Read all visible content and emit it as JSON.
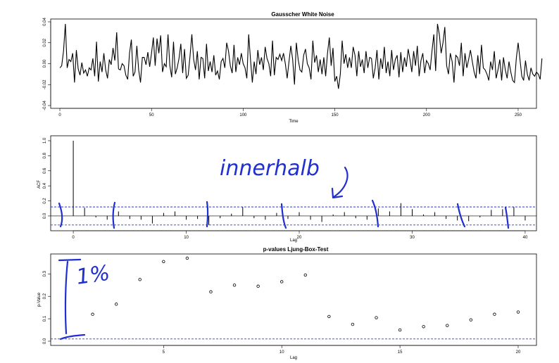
{
  "chart_data": [
    {
      "type": "line",
      "title": "Gausscher White Noise",
      "xlabel": "Time",
      "ylabel": "",
      "xlim": [
        -5,
        260
      ],
      "ylim": [
        -0.04,
        0.04
      ],
      "x_ticks": [
        0,
        50,
        100,
        150,
        200,
        250
      ],
      "y_ticks": [
        -0.04,
        -0.02,
        0.0,
        0.02,
        0.04
      ],
      "y_tick_labels": [
        "-0.04",
        "-0.02",
        "0.00",
        "0.02",
        "0.04"
      ],
      "series": [
        {
          "x_start": 0,
          "x_step": 1,
          "color": "#000000",
          "values": [
            -0.004,
            -0.002,
            0.012,
            0.038,
            -0.004,
            0.004,
            0.002,
            0.01,
            -0.018,
            0.013,
            -0.005,
            -0.011,
            0.001,
            -0.009,
            -0.006,
            -0.012,
            -0.004,
            -0.006,
            0.005,
            -0.012,
            0.021,
            -0.017,
            0.002,
            -0.008,
            0.01,
            -0.006,
            -0.014,
            0.004,
            -0.001,
            0.015,
            0.003,
            0.03,
            -0.005,
            -0.006,
            0.0,
            -0.002,
            -0.011,
            -0.015,
            0.01,
            0.023,
            -0.012,
            -0.008,
            0.017,
            -0.006,
            -0.018,
            0.006,
            0.006,
            -0.001,
            0.011,
            -0.003,
            0.01,
            0.025,
            -0.002,
            0.024,
            0.01,
            0.027,
            -0.008,
            0.0,
            -0.003,
            0.028,
            -0.002,
            -0.013,
            0.021,
            -0.01,
            -0.004,
            0.005,
            0.019,
            -0.009,
            0.014,
            -0.014,
            -0.011,
            0.007,
            0.028,
            0.004,
            -0.006,
            0.012,
            -0.015,
            0.006,
            0.005,
            -0.014,
            0.019,
            -0.007,
            0.002,
            -0.008,
            0.008,
            -0.011,
            -0.007,
            -0.015,
            0.002,
            0.005,
            -0.004,
            0.02,
            0.012,
            -0.002,
            -0.009,
            0.018,
            -0.008,
            0.006,
            -0.001,
            0.01,
            0.0,
            -0.004,
            -0.014,
            0.028,
            0.004,
            -0.018,
            0.002,
            -0.01,
            0.013,
            -0.001,
            0.006,
            -0.006,
            0.016,
            0.005,
            0.0,
            -0.012,
            0.022,
            -0.011,
            0.006,
            0.004,
            0.009,
            0.003,
            0.01,
            0.0,
            -0.014,
            0.002,
            0.017,
            0.004,
            -0.02,
            0.02,
            0.004,
            -0.006,
            -0.008,
            0.008,
            0.014,
            0.0,
            -0.004,
            -0.015,
            0.022,
            0.001,
            0.008,
            -0.008,
            0.004,
            -0.01,
            0.006,
            -0.012,
            0.01,
            0.025,
            -0.002,
            0.015,
            -0.017,
            -0.012,
            -0.024,
            -0.01,
            0.022,
            0.0,
            0.009,
            -0.004,
            0.006,
            -0.004,
            0.016,
            0.008,
            -0.012,
            0.012,
            -0.003,
            0.004,
            -0.009,
            0.012,
            -0.004,
            0.006,
            0.005,
            -0.014,
            -0.004,
            0.013,
            -0.015,
            0.005,
            -0.005,
            0.016,
            -0.009,
            0.002,
            -0.012,
            0.013,
            -0.006,
            0.004,
            0.008,
            -0.013,
            0.011,
            -0.008,
            0.006,
            -0.003,
            0.014,
            0.004,
            -0.008,
            0.012,
            -0.002,
            0.017,
            -0.012,
            0.003,
            0.01,
            -0.009,
            0.003,
            0.0,
            -0.006,
            0.012,
            0.028,
            -0.007,
            0.038,
            0.028,
            0.01,
            0.02,
            0.035,
            -0.002,
            -0.01,
            0.01,
            0.002,
            -0.018,
            0.008,
            0.006,
            -0.002,
            0.02,
            -0.012,
            0.01,
            -0.004,
            0.004,
            0.013,
            0.002,
            -0.008,
            -0.014,
            0.008,
            -0.01,
            0.018,
            -0.004,
            -0.006,
            -0.01,
            -0.016,
            0.002,
            -0.006,
            0.012,
            -0.014,
            -0.006,
            0.004,
            -0.016,
            0.006,
            -0.006,
            -0.014,
            0.002,
            -0.008,
            -0.016,
            -0.018,
            0.005,
            0.02,
            0.004,
            -0.012,
            -0.016,
            0.003,
            -0.01,
            -0.016,
            -0.004,
            -0.01,
            -0.012,
            -0.008,
            -0.01,
            -0.015,
            0.005
          ]
        }
      ]
    },
    {
      "type": "bar",
      "title": "",
      "xlabel": "Lag",
      "ylabel": "ACF",
      "xlim": [
        -2,
        41
      ],
      "ylim": [
        -0.15,
        1.0
      ],
      "x_ticks": [
        0,
        10,
        20,
        30,
        40
      ],
      "y_ticks": [
        0.0,
        0.2,
        0.4,
        0.6,
        0.8,
        1.0
      ],
      "y_tick_labels": [
        "0.0",
        "0.2",
        "0.4",
        "0.6",
        "0.8",
        "1.0"
      ],
      "confidence_bounds": [
        0.12,
        -0.12
      ],
      "lags": [
        0,
        1,
        2,
        3,
        4,
        5,
        6,
        7,
        8,
        9,
        10,
        11,
        12,
        13,
        14,
        15,
        16,
        17,
        18,
        19,
        20,
        21,
        22,
        23,
        24,
        25,
        26,
        27,
        28,
        29,
        30,
        31,
        32,
        33,
        34,
        35,
        36,
        37,
        38,
        39,
        40
      ],
      "values": [
        1.0,
        0.11,
        -0.02,
        -0.05,
        0.06,
        -0.04,
        -0.05,
        -0.1,
        0.04,
        0.06,
        -0.05,
        -0.04,
        -0.12,
        -0.03,
        0.03,
        0.12,
        -0.03,
        -0.05,
        0.04,
        -0.04,
        0.05,
        -0.05,
        -0.08,
        0.02,
        0.05,
        -0.03,
        -0.05,
        0.1,
        0.06,
        0.17,
        0.09,
        0.02,
        0.05,
        -0.04,
        -0.06,
        -0.07,
        -0.02,
        0.08,
        0.09,
        0.12,
        -0.06
      ]
    },
    {
      "type": "scatter",
      "title": "p-values Ljung-Box-Test",
      "xlabel": "Lag",
      "ylabel": "p-Value",
      "xlim": [
        1,
        20
      ],
      "ylim": [
        0,
        0.37
      ],
      "x_ticks": [
        5,
        10,
        15,
        20
      ],
      "y_ticks": [
        0.0,
        0.1,
        0.2,
        0.3
      ],
      "y_tick_labels": [
        "0.0",
        "0.1",
        "0.2",
        "0.3"
      ],
      "reference_line": 0.01,
      "x": [
        2,
        3,
        4,
        5,
        6,
        7,
        8,
        9,
        10,
        11,
        12,
        13,
        14,
        15,
        16,
        17,
        18,
        19,
        20
      ],
      "y": [
        0.12,
        0.165,
        0.275,
        0.355,
        0.37,
        0.22,
        0.25,
        0.245,
        0.265,
        0.295,
        0.11,
        0.075,
        0.105,
        0.05,
        0.065,
        0.07,
        0.095,
        0.12,
        0.13
      ]
    }
  ],
  "annotations": {
    "acf_note": "innerhalb",
    "pvalue_note": "1%"
  },
  "colors": {
    "axis": "#000000",
    "bounds": "#2b3bd6",
    "ink": "#1f2fd0"
  }
}
